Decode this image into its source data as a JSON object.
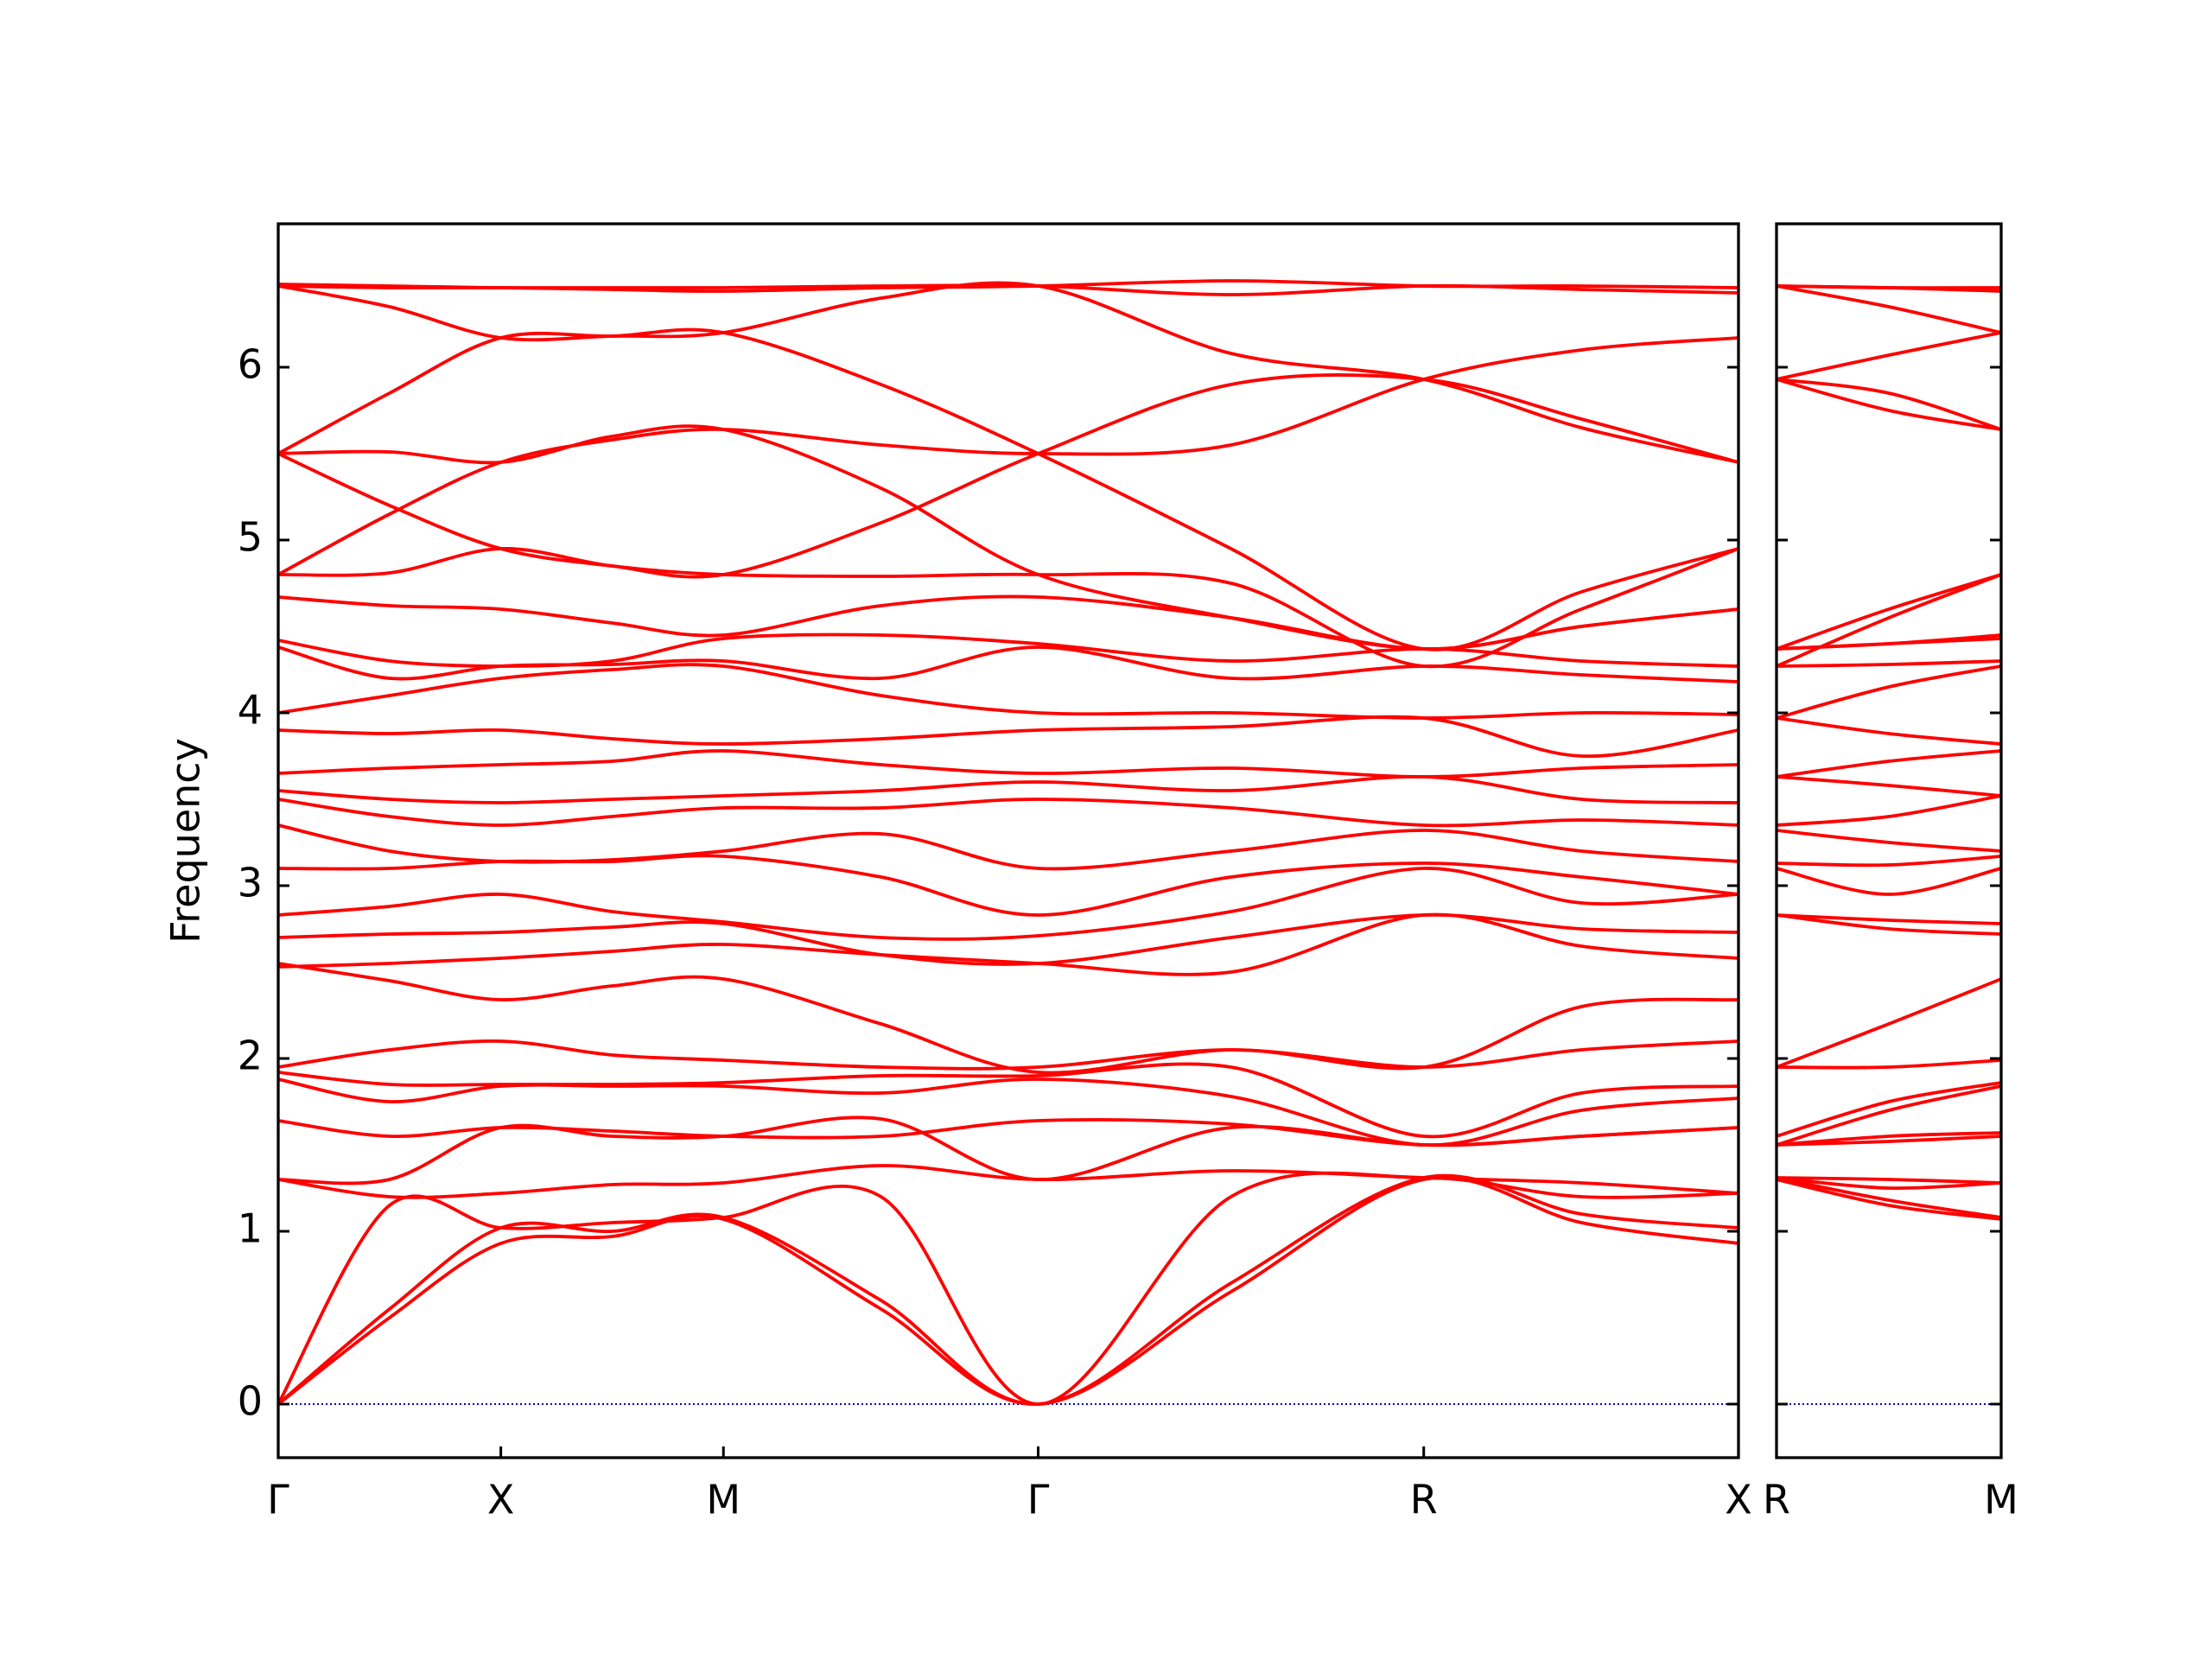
{
  "chart_data": [
    {
      "type": "line",
      "ylabel": "Frequency",
      "x": [
        0,
        0.25,
        0.5,
        0.75,
        1.0,
        1.354,
        1.707,
        2.14,
        2.573,
        2.927,
        3.28
      ],
      "xlim": [
        0,
        3.28
      ],
      "xticks": [
        {
          "value": 0,
          "label": "Γ"
        },
        {
          "value": 0.5,
          "label": "X"
        },
        {
          "value": 1.0,
          "label": "M"
        },
        {
          "value": 1.707,
          "label": "Γ"
        },
        {
          "value": 2.573,
          "label": "R"
        },
        {
          "value": 3.28,
          "label": "X"
        }
      ],
      "ylim": [
        -0.31,
        6.83
      ],
      "yticks": [
        0,
        1,
        2,
        3,
        4,
        5,
        6
      ],
      "show_ytick_labels": true,
      "color": "#ff0000",
      "hline": {
        "y": 0,
        "color": "#0000cc"
      },
      "series": [
        {
          "values": [
            0,
            0.5,
            0.93,
            0.97,
            1.07,
            0.55,
            0,
            0.65,
            1.3,
            1.05,
            0.93
          ]
        },
        {
          "values": [
            0,
            0.55,
            1.02,
            1.0,
            1.08,
            0.6,
            0,
            0.7,
            1.31,
            1.1,
            1.02
          ]
        },
        {
          "values": [
            0,
            1.15,
            1.02,
            1.05,
            1.08,
            1.2,
            0,
            1.2,
            1.31,
            1.2,
            1.22
          ]
        },
        {
          "values": [
            1.3,
            1.2,
            1.22,
            1.27,
            1.28,
            1.38,
            1.3,
            1.35,
            1.31,
            1.28,
            1.22
          ]
        },
        {
          "values": [
            1.3,
            1.3,
            1.6,
            1.55,
            1.55,
            1.65,
            1.3,
            1.6,
            1.5,
            1.55,
            1.6
          ]
        },
        {
          "values": [
            1.64,
            1.55,
            1.6,
            1.58,
            1.55,
            1.55,
            1.64,
            1.62,
            1.5,
            1.55,
            1.6
          ]
        },
        {
          "values": [
            1.88,
            1.75,
            1.84,
            1.84,
            1.84,
            1.8,
            1.88,
            1.78,
            1.5,
            1.7,
            1.77
          ]
        },
        {
          "values": [
            1.92,
            1.85,
            1.85,
            1.85,
            1.86,
            1.9,
            1.9,
            1.95,
            1.55,
            1.8,
            1.84
          ]
        },
        {
          "values": [
            1.95,
            2.05,
            2.1,
            2.02,
            1.99,
            1.95,
            1.95,
            2.05,
            1.95,
            2.05,
            2.1
          ]
        },
        {
          "values": [
            2.55,
            2.45,
            2.34,
            2.42,
            2.46,
            2.2,
            1.92,
            2.05,
            1.95,
            2.3,
            2.34
          ]
        },
        {
          "values": [
            2.53,
            2.55,
            2.58,
            2.62,
            2.66,
            2.6,
            2.55,
            2.5,
            2.83,
            2.65,
            2.58
          ]
        },
        {
          "values": [
            2.7,
            2.72,
            2.73,
            2.76,
            2.78,
            2.6,
            2.55,
            2.7,
            2.83,
            2.75,
            2.73
          ]
        },
        {
          "values": [
            2.83,
            2.88,
            2.95,
            2.85,
            2.79,
            2.7,
            2.71,
            2.85,
            3.1,
            2.9,
            2.95
          ]
        },
        {
          "values": [
            3.1,
            3.1,
            3.14,
            3.14,
            3.17,
            3.05,
            2.83,
            3.05,
            3.13,
            3.05,
            2.95
          ]
        },
        {
          "values": [
            3.35,
            3.2,
            3.14,
            3.15,
            3.2,
            3.3,
            3.1,
            3.2,
            3.32,
            3.2,
            3.14
          ]
        },
        {
          "values": [
            3.5,
            3.4,
            3.35,
            3.4,
            3.45,
            3.45,
            3.5,
            3.45,
            3.35,
            3.38,
            3.35
          ]
        },
        {
          "values": [
            3.55,
            3.5,
            3.48,
            3.5,
            3.52,
            3.55,
            3.6,
            3.55,
            3.63,
            3.5,
            3.48
          ]
        },
        {
          "values": [
            3.65,
            3.68,
            3.7,
            3.72,
            3.78,
            3.7,
            3.65,
            3.68,
            3.63,
            3.68,
            3.7
          ]
        },
        {
          "values": [
            3.9,
            3.88,
            3.9,
            3.85,
            3.82,
            3.85,
            3.9,
            3.92,
            3.97,
            3.75,
            3.9
          ]
        },
        {
          "values": [
            4.0,
            4.1,
            4.2,
            4.25,
            4.27,
            4.1,
            4.0,
            4.0,
            3.97,
            4.0,
            3.99
          ]
        },
        {
          "values": [
            4.38,
            4.2,
            4.27,
            4.28,
            4.3,
            4.2,
            4.38,
            4.2,
            4.27,
            4.22,
            4.18
          ]
        },
        {
          "values": [
            4.42,
            4.3,
            4.27,
            4.3,
            4.43,
            4.45,
            4.4,
            4.3,
            4.37,
            4.3,
            4.27
          ]
        },
        {
          "values": [
            4.67,
            4.62,
            4.6,
            4.52,
            4.45,
            4.62,
            4.67,
            4.55,
            4.37,
            4.5,
            4.6
          ]
        },
        {
          "values": [
            4.8,
            4.81,
            4.95,
            4.85,
            4.8,
            4.79,
            4.8,
            4.75,
            4.27,
            4.6,
            4.95
          ]
        },
        {
          "values": [
            4.8,
            5.15,
            5.45,
            5.58,
            5.64,
            5.55,
            5.5,
            5.55,
            5.93,
            6.1,
            6.17
          ]
        },
        {
          "values": [
            5.5,
            5.2,
            4.95,
            4.85,
            4.8,
            5.1,
            5.5,
            5.9,
            5.93,
            5.7,
            5.45
          ]
        },
        {
          "values": [
            5.5,
            5.51,
            5.45,
            5.6,
            5.64,
            5.3,
            4.8,
            4.55,
            4.37,
            4.5,
            4.6
          ]
        },
        {
          "values": [
            5.5,
            5.85,
            6.17,
            6.18,
            6.2,
            5.9,
            5.5,
            4.95,
            4.37,
            4.7,
            4.95
          ]
        },
        {
          "values": [
            6.47,
            6.35,
            6.17,
            6.18,
            6.2,
            6.4,
            6.47,
            6.08,
            5.93,
            5.65,
            5.45
          ]
        },
        {
          "values": [
            6.47,
            6.46,
            6.46,
            6.45,
            6.44,
            6.46,
            6.47,
            6.5,
            6.47,
            6.47,
            6.46
          ]
        },
        {
          "values": [
            6.48,
            6.47,
            6.46,
            6.46,
            6.46,
            6.47,
            6.47,
            6.42,
            6.47,
            6.45,
            6.43
          ]
        }
      ]
    },
    {
      "type": "line",
      "x": [
        0,
        0.25,
        0.5
      ],
      "xlim": [
        0,
        0.5
      ],
      "xticks": [
        {
          "value": 0,
          "label": "R"
        },
        {
          "value": 0.5,
          "label": "M"
        }
      ],
      "ylim": [
        -0.31,
        6.83
      ],
      "yticks": [
        0,
        1,
        2,
        3,
        4,
        5,
        6
      ],
      "show_ytick_labels": false,
      "color": "#ff0000",
      "hline": {
        "y": 0,
        "color": "#0000cc"
      },
      "series": [
        {
          "values": [
            1.3,
            1.15,
            1.07
          ]
        },
        {
          "values": [
            1.31,
            1.18,
            1.08
          ]
        },
        {
          "values": [
            1.31,
            1.25,
            1.28
          ]
        },
        {
          "values": [
            1.31,
            1.3,
            1.28
          ]
        },
        {
          "values": [
            1.5,
            1.52,
            1.55
          ]
        },
        {
          "values": [
            1.5,
            1.55,
            1.57
          ]
        },
        {
          "values": [
            1.5,
            1.7,
            1.84
          ]
        },
        {
          "values": [
            1.55,
            1.75,
            1.86
          ]
        },
        {
          "values": [
            1.95,
            1.95,
            1.99
          ]
        },
        {
          "values": [
            1.95,
            2.2,
            2.46
          ]
        },
        {
          "values": [
            2.83,
            2.75,
            2.72
          ]
        },
        {
          "values": [
            2.83,
            2.8,
            2.78
          ]
        },
        {
          "values": [
            3.1,
            2.95,
            3.1
          ]
        },
        {
          "values": [
            3.13,
            3.12,
            3.17
          ]
        },
        {
          "values": [
            3.32,
            3.25,
            3.2
          ]
        },
        {
          "values": [
            3.35,
            3.4,
            3.52
          ]
        },
        {
          "values": [
            3.63,
            3.58,
            3.52
          ]
        },
        {
          "values": [
            3.63,
            3.72,
            3.78
          ]
        },
        {
          "values": [
            3.97,
            3.88,
            3.82
          ]
        },
        {
          "values": [
            3.97,
            4.15,
            4.27
          ]
        },
        {
          "values": [
            4.27,
            4.28,
            4.3
          ]
        },
        {
          "values": [
            4.37,
            4.4,
            4.43
          ]
        },
        {
          "values": [
            4.37,
            4.4,
            4.45
          ]
        },
        {
          "values": [
            4.27,
            4.55,
            4.8
          ]
        },
        {
          "values": [
            5.93,
            5.75,
            5.64
          ]
        },
        {
          "values": [
            5.93,
            5.85,
            5.64
          ]
        },
        {
          "values": [
            4.37,
            4.6,
            4.8
          ]
        },
        {
          "values": [
            5.93,
            6.07,
            6.2
          ]
        },
        {
          "values": [
            6.47,
            6.35,
            6.2
          ]
        },
        {
          "values": [
            6.47,
            6.46,
            6.44
          ]
        },
        {
          "values": [
            6.47,
            6.46,
            6.46
          ]
        }
      ]
    }
  ]
}
